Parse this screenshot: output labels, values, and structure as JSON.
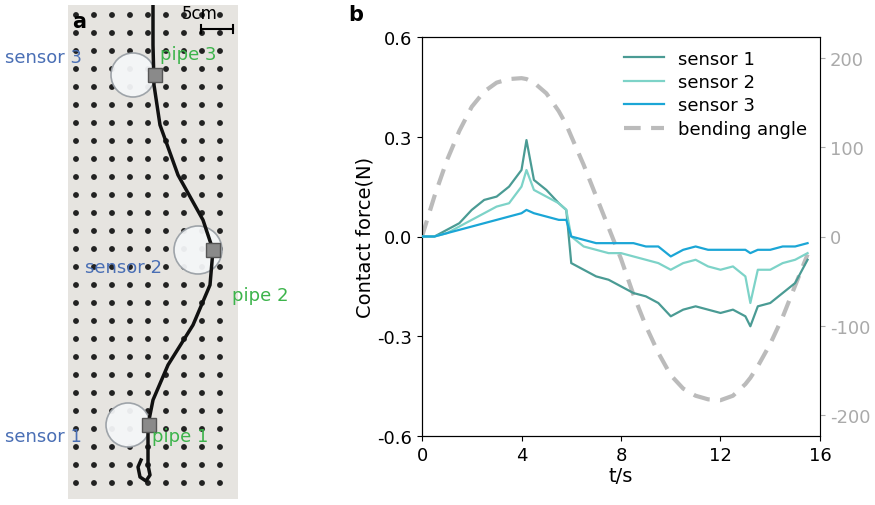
{
  "panel_a": {
    "label": "a",
    "scale_bar": "5cm",
    "sensors": [
      "sensor 1",
      "sensor 2",
      "sensor 3"
    ],
    "pipes": [
      "pipe 1",
      "pipe 2",
      "pipe 3"
    ]
  },
  "chart_data": {
    "type": "line",
    "panel_label": "b",
    "x_label": "t/s",
    "y_label": "Contact force(N)",
    "x": [
      0,
      0.5,
      1,
      1.5,
      2,
      2.5,
      3,
      3.5,
      4,
      4.2,
      4.5,
      5,
      5.5,
      5.8,
      6,
      6.5,
      7,
      7.5,
      8,
      8.5,
      9,
      9.5,
      10,
      10.5,
      11,
      11.5,
      12,
      12.5,
      13,
      13.2,
      13.5,
      14,
      14.5,
      15,
      15.5
    ],
    "series": [
      {
        "name": "sensor 1",
        "color": "#4a9b94",
        "line_style": "solid",
        "values": [
          0,
          0,
          0.02,
          0.04,
          0.08,
          0.11,
          0.12,
          0.15,
          0.2,
          0.29,
          0.17,
          0.14,
          0.1,
          0.08,
          -0.08,
          -0.1,
          -0.12,
          -0.13,
          -0.15,
          -0.17,
          -0.18,
          -0.2,
          -0.24,
          -0.22,
          -0.21,
          -0.22,
          -0.23,
          -0.22,
          -0.24,
          -0.27,
          -0.21,
          -0.2,
          -0.17,
          -0.14,
          -0.07
        ]
      },
      {
        "name": "sensor 2",
        "color": "#7dd3c8",
        "line_style": "solid",
        "values": [
          0,
          0,
          0.01,
          0.03,
          0.05,
          0.07,
          0.09,
          0.1,
          0.15,
          0.2,
          0.14,
          0.12,
          0.1,
          0.08,
          0.0,
          -0.03,
          -0.04,
          -0.05,
          -0.05,
          -0.06,
          -0.07,
          -0.08,
          -0.1,
          -0.08,
          -0.07,
          -0.09,
          -0.1,
          -0.09,
          -0.12,
          -0.2,
          -0.1,
          -0.1,
          -0.08,
          -0.07,
          -0.05
        ]
      },
      {
        "name": "sensor 3",
        "color": "#1ba6d6",
        "line_style": "solid",
        "values": [
          0,
          0,
          0.01,
          0.02,
          0.03,
          0.04,
          0.05,
          0.06,
          0.07,
          0.08,
          0.07,
          0.06,
          0.05,
          0.05,
          0.0,
          -0.01,
          -0.02,
          -0.02,
          -0.02,
          -0.02,
          -0.03,
          -0.03,
          -0.06,
          -0.04,
          -0.03,
          -0.04,
          -0.04,
          -0.04,
          -0.04,
          -0.05,
          -0.04,
          -0.04,
          -0.03,
          -0.03,
          -0.02
        ]
      },
      {
        "name": "bending angle",
        "color": "#bbbbbb",
        "line_style": "dashed",
        "axis": "y2",
        "values": [
          0,
          45,
          85,
          118,
          145,
          162,
          172,
          176,
          177,
          176,
          172,
          160,
          140,
          125,
          112,
          80,
          45,
          10,
          -25,
          -65,
          -100,
          -130,
          -155,
          -170,
          -178,
          -182,
          -183,
          -178,
          -165,
          -158,
          -145,
          -120,
          -90,
          -55,
          -20
        ]
      }
    ],
    "xlim": [
      0,
      16
    ],
    "xticks": [
      0,
      4,
      8,
      12,
      16
    ],
    "ylim": [
      -0.6,
      0.6
    ],
    "yticks": [
      -0.6,
      -0.3,
      0.0,
      0.3,
      0.6
    ],
    "y2lim": [
      -223,
      223
    ],
    "y2ticks": [
      -200,
      -100,
      0,
      100,
      200
    ],
    "legend": "upper right"
  }
}
